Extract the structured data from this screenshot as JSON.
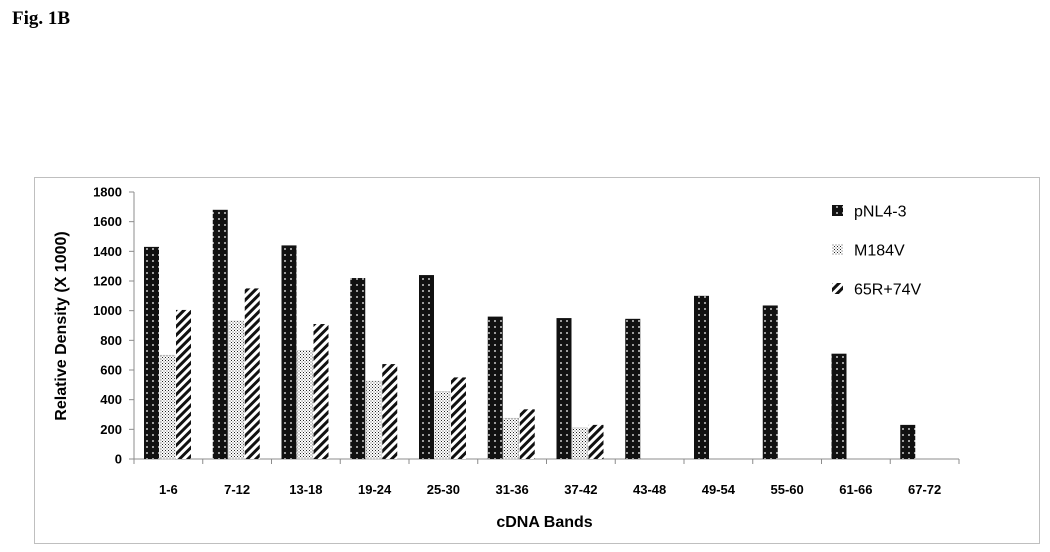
{
  "figure": {
    "label": "Fig. 1B"
  },
  "chart_data": {
    "type": "bar",
    "title": "",
    "xlabel": "cDNA Bands",
    "ylabel": "Relative Density (X 1000)",
    "ylim": [
      0,
      1800
    ],
    "yticks": [
      0,
      200,
      400,
      600,
      800,
      1000,
      1200,
      1400,
      1600,
      1800
    ],
    "grid": false,
    "legend_position": "top-right",
    "categories": [
      "1-6",
      "7-12",
      "13-18",
      "19-24",
      "25-30",
      "31-36",
      "37-42",
      "43-48",
      "49-54",
      "55-60",
      "61-66",
      "67-72"
    ],
    "series": [
      {
        "name": "pNL4-3",
        "pattern": "dotted-black",
        "values": [
          1430,
          1680,
          1440,
          1220,
          1240,
          960,
          950,
          945,
          1100,
          1035,
          710,
          230
        ]
      },
      {
        "name": "M184V",
        "pattern": "stippled-light",
        "values": [
          700,
          930,
          730,
          525,
          455,
          275,
          210,
          null,
          null,
          null,
          null,
          null
        ]
      },
      {
        "name": "65R+74V",
        "pattern": "diagonal-hatch",
        "values": [
          1005,
          1150,
          910,
          640,
          550,
          335,
          230,
          null,
          null,
          null,
          null,
          null
        ]
      }
    ]
  }
}
